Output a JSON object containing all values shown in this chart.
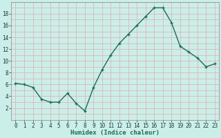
{
  "x": [
    0,
    1,
    2,
    3,
    4,
    5,
    6,
    7,
    8,
    9,
    10,
    11,
    12,
    13,
    14,
    15,
    16,
    17,
    18,
    19,
    20,
    21,
    22,
    23
  ],
  "y": [
    6.2,
    6.0,
    5.5,
    3.5,
    3.0,
    3.0,
    4.5,
    2.8,
    1.5,
    5.5,
    8.5,
    11.0,
    13.0,
    14.5,
    16.0,
    17.5,
    19.0,
    19.0,
    16.5,
    12.5,
    11.5,
    10.5,
    9.0,
    9.5
  ],
  "xlabel": "Humidex (Indice chaleur)",
  "ylim": [
    0,
    20
  ],
  "xlim": [
    -0.5,
    23.5
  ],
  "yticks": [
    2,
    4,
    6,
    8,
    10,
    12,
    14,
    16,
    18
  ],
  "xticks": [
    0,
    1,
    2,
    3,
    4,
    5,
    6,
    7,
    8,
    9,
    10,
    11,
    12,
    13,
    14,
    15,
    16,
    17,
    18,
    19,
    20,
    21,
    22,
    23
  ],
  "line_color": "#1a6b5a",
  "marker_color": "#1a6b5a",
  "bg_color": "#cceee8",
  "grid_color": "#d8b8b8",
  "spine_color": "#888888"
}
